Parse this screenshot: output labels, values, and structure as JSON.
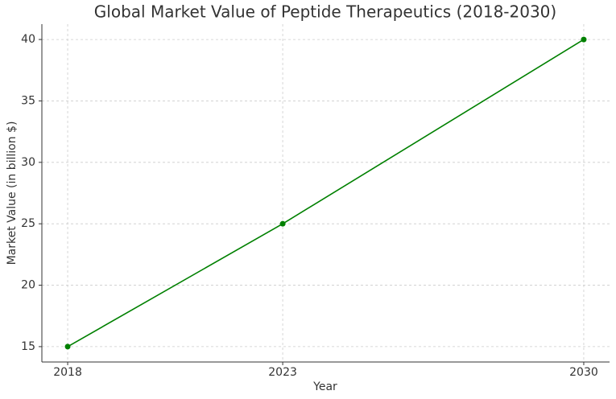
{
  "chart_data": {
    "type": "line",
    "title": "Global Market Value of Peptide Therapeutics (2018-2030)",
    "x_label": "Year",
    "y_label": "Market Value (in billion $)",
    "x": [
      2018,
      2023,
      2030
    ],
    "series": [
      {
        "name": "Market Value",
        "color": "#008000",
        "values": [
          15,
          25,
          40
        ]
      }
    ],
    "xlim": [
      2017.4,
      2030.6
    ],
    "xticks": [
      2018,
      2023,
      2030
    ],
    "ylim": [
      13.75,
      41.25
    ],
    "yticks": [
      15,
      20,
      25,
      30,
      35,
      40
    ],
    "grid": true,
    "markers": true
  }
}
